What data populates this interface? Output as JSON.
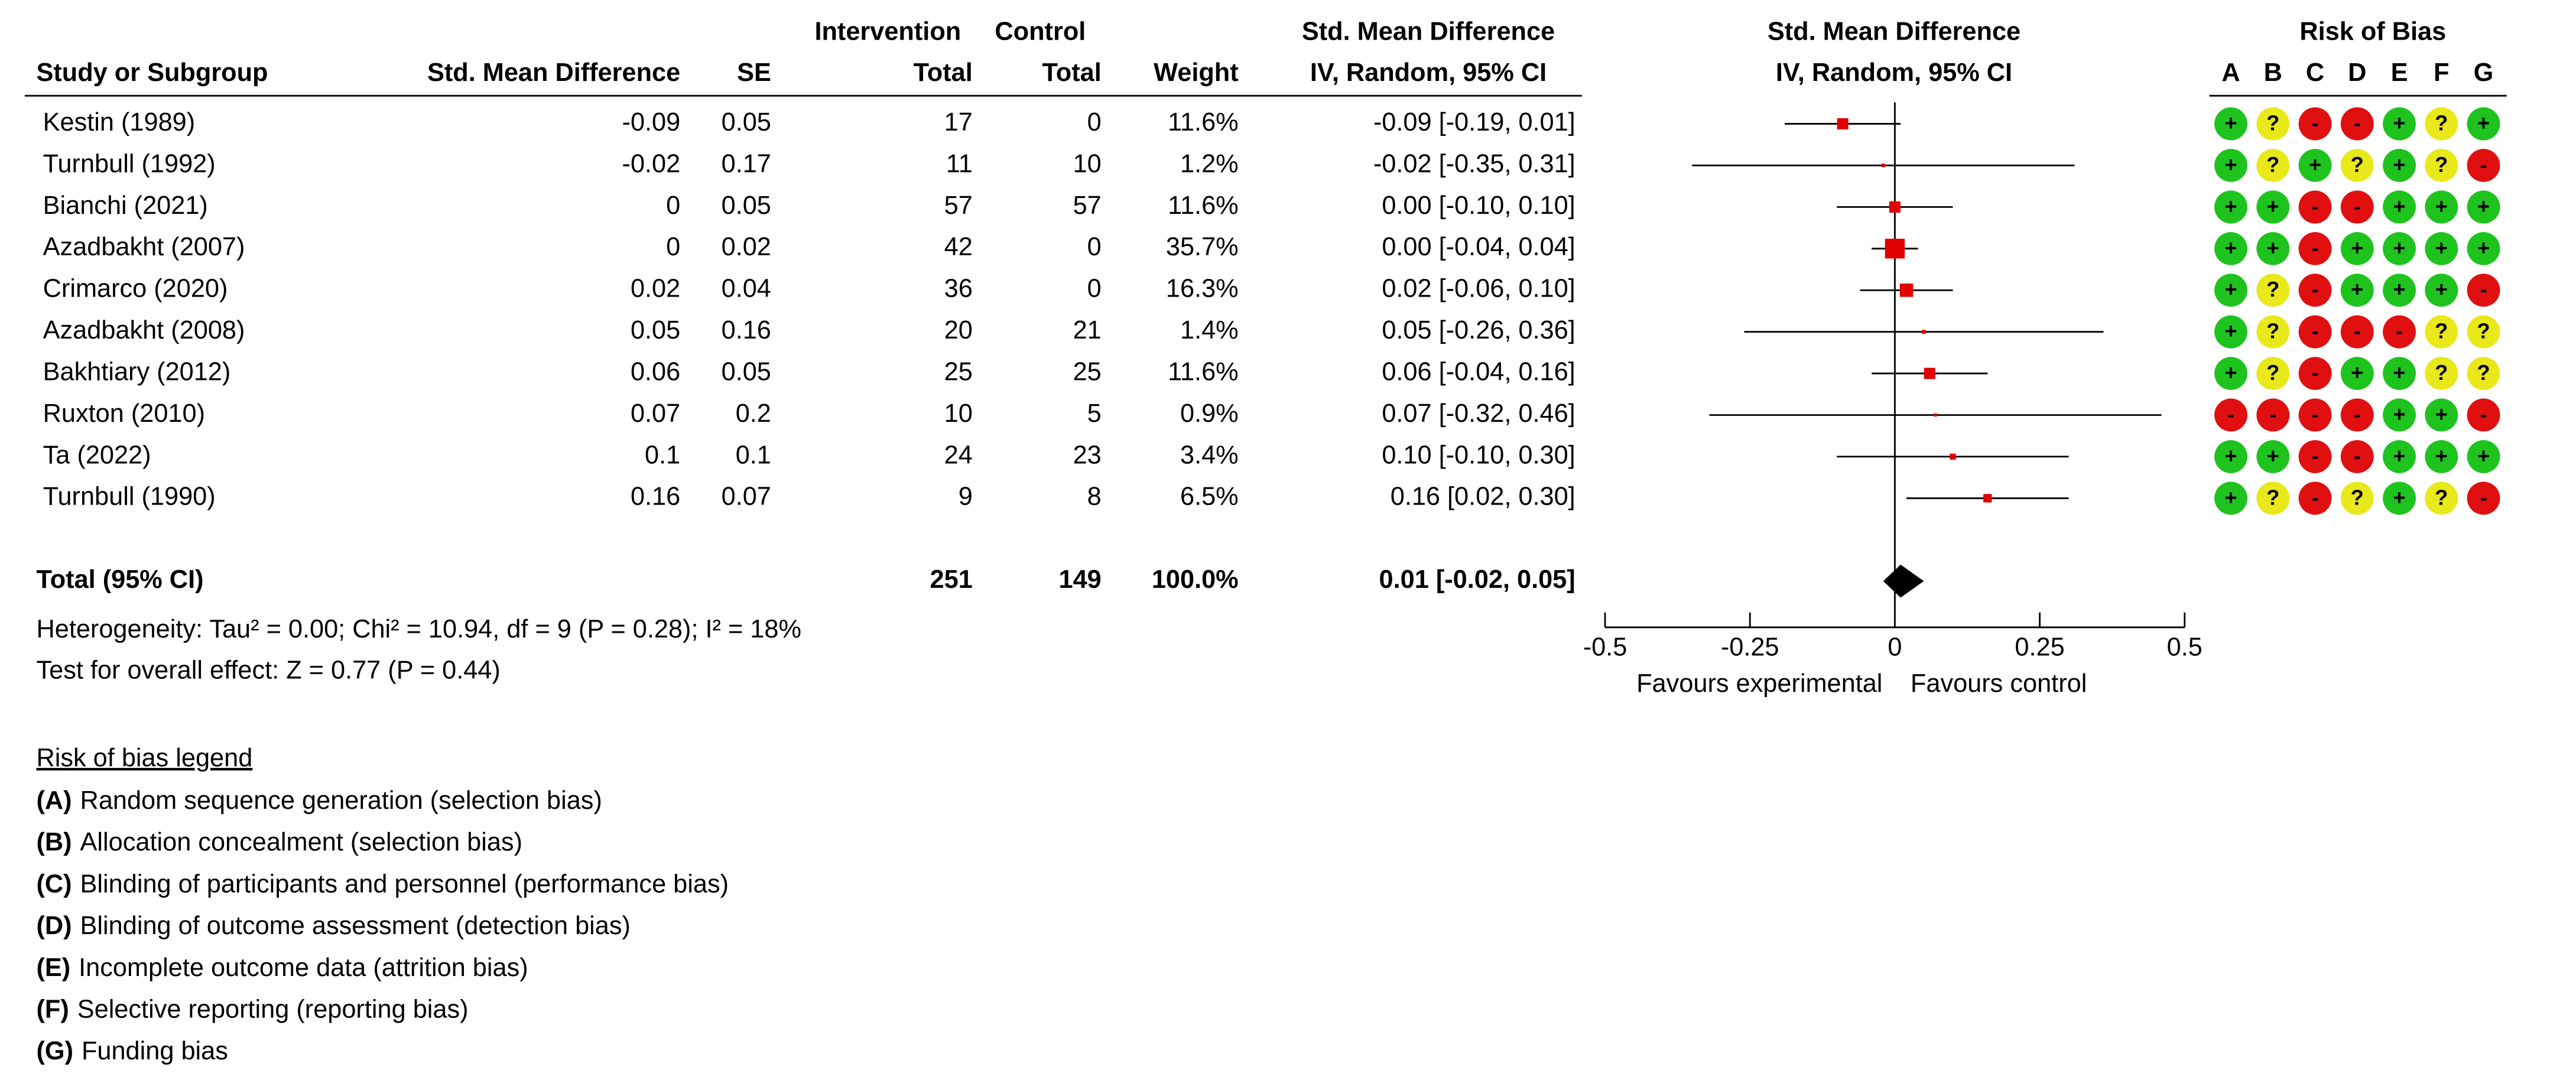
{
  "chart_data": {
    "type": "forest",
    "group_headers": [
      "Intervention",
      "Control",
      "Std. Mean Difference"
    ],
    "column_headers": [
      "Study or Subgroup",
      "Std. Mean Difference",
      "SE",
      "Total",
      "Total",
      "Weight",
      "IV, Random, 95% CI"
    ],
    "plot_title": [
      "Std. Mean Difference",
      "IV, Random, 95% CI"
    ],
    "studies": [
      "Kestin (1989)",
      "Turnbull (1992)",
      "Bianchi (2021)",
      "Azadbakht (2007)",
      "Crimarco (2020)",
      "Azadbakht (2008)",
      "Bakhtiary (2012)",
      "Ruxton (2010)",
      "Ta (2022)",
      "Turnbull (1990)"
    ],
    "smd": [
      -0.09,
      -0.02,
      0,
      0,
      0.02,
      0.05,
      0.06,
      0.07,
      0.1,
      0.16
    ],
    "se": [
      0.05,
      0.17,
      0.05,
      0.02,
      0.04,
      0.16,
      0.05,
      0.2,
      0.1,
      0.07
    ],
    "intervention_total": [
      17,
      11,
      57,
      42,
      36,
      20,
      25,
      10,
      24,
      9
    ],
    "control_total": [
      0,
      10,
      57,
      0,
      0,
      21,
      25,
      5,
      23,
      8
    ],
    "weights": [
      11.6,
      1.2,
      11.6,
      35.7,
      16.3,
      1.4,
      11.6,
      0.9,
      3.4,
      6.5
    ],
    "weight_labels": [
      "11.6%",
      "1.2%",
      "11.6%",
      "35.7%",
      "16.3%",
      "1.4%",
      "11.6%",
      "0.9%",
      "3.4%",
      "6.5%"
    ],
    "ci_lower": [
      -0.19,
      -0.35,
      -0.1,
      -0.04,
      -0.06,
      -0.26,
      -0.04,
      -0.32,
      -0.1,
      0.02
    ],
    "ci_upper": [
      0.01,
      0.31,
      0.1,
      0.04,
      0.1,
      0.36,
      0.16,
      0.46,
      0.3,
      0.3
    ],
    "ci_labels": [
      "-0.09 [-0.19, 0.01]",
      "-0.02 [-0.35, 0.31]",
      "0.00 [-0.10, 0.10]",
      "0.00 [-0.04, 0.04]",
      "0.02 [-0.06, 0.10]",
      "0.05 [-0.26, 0.36]",
      "0.06 [-0.04, 0.16]",
      "0.07 [-0.32, 0.46]",
      "0.10 [-0.10, 0.30]",
      "0.16 [0.02, 0.30]"
    ],
    "total": {
      "label": "Total (95% CI)",
      "intervention_total": 251,
      "control_total": 149,
      "weight": 100,
      "weight_label": "100.0%",
      "estimate": 0.01,
      "ci_lower": -0.02,
      "ci_upper": 0.05,
      "ci_label": "0.01 [-0.02, 0.05]"
    },
    "heterogeneity": "Heterogeneity: Tau² = 0.00; Chi² = 10.94, df = 9 (P = 0.28); I² = 18%",
    "overall_effect": "Test for overall effect: Z = 0.77 (P = 0.44)",
    "xlim": [
      -0.5,
      0.5
    ],
    "xticks": [
      -0.5,
      -0.25,
      0,
      0.25,
      0.5
    ],
    "x_labels": [
      "Favours experimental",
      "Favours control"
    ],
    "marker_color": "#e00000",
    "risk_of_bias": {
      "title": "Risk of Bias",
      "domains": [
        "A",
        "B",
        "C",
        "D",
        "E",
        "F",
        "G"
      ],
      "ratings": [
        [
          "+",
          "?",
          "-",
          "-",
          "+",
          "?",
          "+"
        ],
        [
          "+",
          "?",
          "+",
          "?",
          "+",
          "?",
          "-"
        ],
        [
          "+",
          "+",
          "-",
          "-",
          "+",
          "+",
          "+"
        ],
        [
          "+",
          "+",
          "-",
          "+",
          "+",
          "+",
          "+"
        ],
        [
          "+",
          "?",
          "-",
          "+",
          "+",
          "+",
          "-"
        ],
        [
          "+",
          "?",
          "-",
          "-",
          "-",
          "?",
          "?"
        ],
        [
          "+",
          "?",
          "-",
          "+",
          "+",
          "?",
          "?"
        ],
        [
          "-",
          "-",
          "-",
          "-",
          "+",
          "+",
          "-"
        ],
        [
          "+",
          "+",
          "-",
          "-",
          "+",
          "+",
          "+"
        ],
        [
          "+",
          "?",
          "-",
          "?",
          "+",
          "?",
          "-"
        ]
      ],
      "colors": {
        "+": "#1ec31e",
        "?": "#e8e81a",
        "-": "#e01010"
      }
    },
    "legend": {
      "title": "Risk of bias legend",
      "items": [
        {
          "key": "(A)",
          "text": "Random sequence generation (selection bias)"
        },
        {
          "key": "(B)",
          "text": "Allocation concealment (selection bias)"
        },
        {
          "key": "(C)",
          "text": "Blinding of participants and personnel (performance bias)"
        },
        {
          "key": "(D)",
          "text": "Blinding of outcome assessment (detection bias)"
        },
        {
          "key": "(E)",
          "text": "Incomplete outcome data (attrition bias)"
        },
        {
          "key": "(F)",
          "text": "Selective reporting (reporting bias)"
        },
        {
          "key": "(G)",
          "text": "Funding bias"
        }
      ]
    }
  }
}
